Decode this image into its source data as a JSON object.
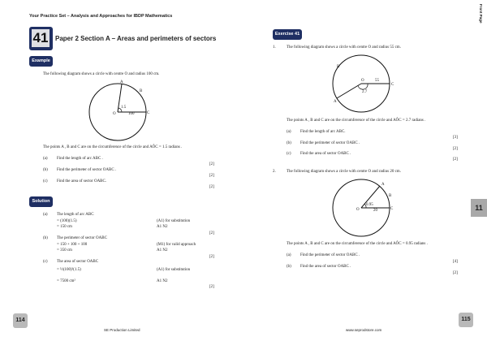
{
  "header": {
    "book_title": "Your Practice Set – Analysis and Approaches for IBDP Mathematics",
    "side_label": "Front Page",
    "chapter_tab": "11"
  },
  "left": {
    "number": "41",
    "title": "Paper 2 Section A – Areas and perimeters of sectors",
    "example_label": "Example",
    "example": {
      "intro": "The following diagram shows a circle with centre O and radius 100 cm.",
      "diagram_labels": {
        "a": "A",
        "b": "B",
        "angle": "1.5",
        "o": "O",
        "radius": "100",
        "c": "C"
      },
      "statement": "The points A , B and C are on the circumference of the circle and AÔC = 1.5 radians .",
      "parts": [
        {
          "label": "(a)",
          "text": "Find the length of arc ABC .",
          "marks": "[2]"
        },
        {
          "label": "(b)",
          "text": "Find the perimeter of sector OABC .",
          "marks": "[2]"
        },
        {
          "label": "(c)",
          "text": "Find the area of sector OABC.",
          "marks": "[2]"
        }
      ]
    },
    "solution_label": "Solution",
    "solution": [
      {
        "label": "(a)",
        "lines": [
          "The length of arc ABC",
          "= (100)(1.5)",
          "= 150 cm"
        ],
        "notes": [
          "",
          "(A1) for substitution",
          "A1     N2"
        ],
        "marks": "[2]"
      },
      {
        "label": "(b)",
        "lines": [
          "The perimeter of sector OABC",
          "= 150 + 100 + 100",
          "= 350 cm"
        ],
        "notes": [
          "",
          "(M1) for valid approach",
          "A1     N2"
        ],
        "marks": "[2]"
      },
      {
        "label": "(c)",
        "lines": [
          "The area of sector OABC",
          "= ½(100)²(1.5)",
          "= 7500 cm²"
        ],
        "notes": [
          "",
          "(A1) for substitution",
          "A1     N2"
        ],
        "marks": "[2]"
      }
    ],
    "page_number": "114",
    "footer": "SE Production Limited"
  },
  "right": {
    "exercise_label": "Exercise 41",
    "questions": [
      {
        "number": "1.",
        "intro": "The following diagram shows a circle with centre O and radius 55 cm.",
        "diagram_labels": {
          "b": "B",
          "o": "O",
          "radius": "55",
          "c": "C",
          "a": "A",
          "angle": "2.7"
        },
        "statement": "The points A , B and C are on the circumference of the circle and AÔC = 2.7 radians .",
        "parts": [
          {
            "label": "(a)",
            "text": "Find the length of arc ABC.",
            "marks": "[3]"
          },
          {
            "label": "(b)",
            "text": "Find the perimeter of sector OABC .",
            "marks": "[2]"
          },
          {
            "label": "(c)",
            "text": "Find the area of sector OABC .",
            "marks": "[2]"
          }
        ]
      },
      {
        "number": "2.",
        "intro": "The following diagram shows a circle with centre O and radius 20 cm.",
        "diagram_labels": {
          "a": "A",
          "b": "B",
          "angle": "0.95",
          "o": "O",
          "radius": "20",
          "c": "C"
        },
        "statement": "The points A , B and C are on the circumference of the circle and AÔC = 0.95 radians .",
        "parts": [
          {
            "label": "(a)",
            "text": "Find the perimeter of sector OABC .",
            "marks": "[4]"
          },
          {
            "label": "(b)",
            "text": "Find the area of sector OABC .",
            "marks": "[2]"
          }
        ]
      }
    ],
    "page_number": "115",
    "footer": "www.seprodstore.com"
  }
}
